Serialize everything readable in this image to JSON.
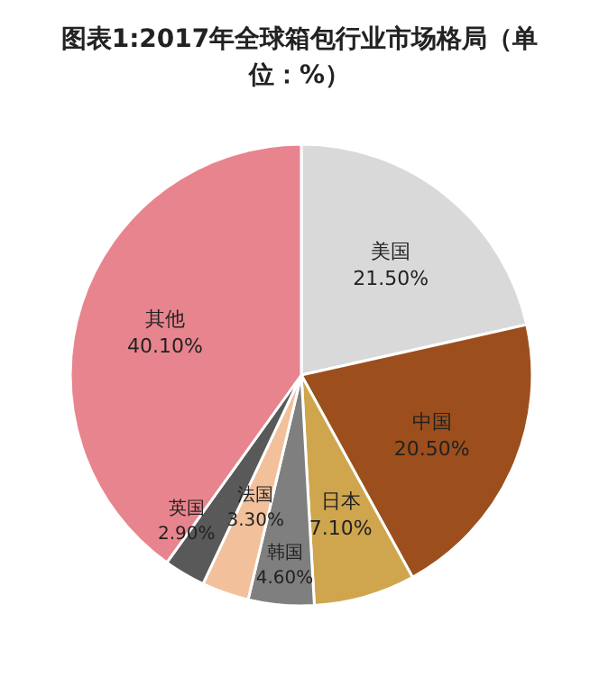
{
  "chart_data": {
    "type": "pie",
    "title": "图表1:2017年全球箱包行业市场格局（单位：%）",
    "categories": [
      "美国",
      "中国",
      "日本",
      "韩国",
      "法国",
      "英国",
      "其他"
    ],
    "values": [
      21.5,
      20.5,
      7.1,
      4.6,
      3.3,
      2.9,
      40.1
    ],
    "value_labels": [
      "21.50%",
      "20.50%",
      "7.10%",
      "4.60%",
      "3.30%",
      "2.90%",
      "40.10%"
    ],
    "colors": [
      "#d9d9d9",
      "#9c4f1c",
      "#cfa64e",
      "#7f7f7f",
      "#f2c09b",
      "#595959",
      "#e8848e"
    ],
    "legend": false
  }
}
